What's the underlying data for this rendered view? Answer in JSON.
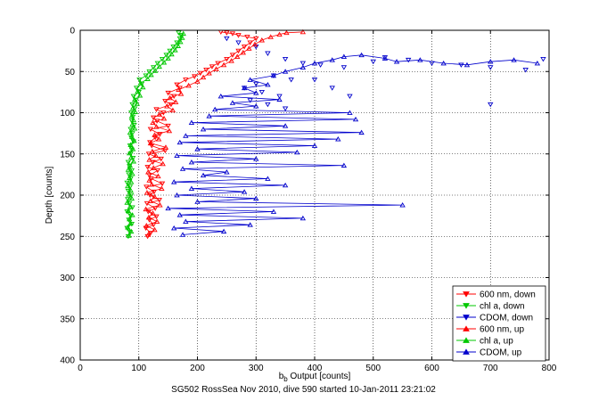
{
  "chart_data": {
    "type": "scatter",
    "xlabel_main": "b",
    "xlabel_sub": "b",
    "xlabel_rest": " Output [counts]",
    "ylabel": "Depth [counts]",
    "caption": "SG502 RossSea Nov 2010, dive 590 started 10-Jan-2011 23:21:02",
    "xlim": [
      0,
      800
    ],
    "ylim": [
      0,
      400
    ],
    "y_reversed": true,
    "grid": true,
    "legend_position": "bottom-right",
    "x_ticks": [
      0,
      100,
      200,
      300,
      400,
      500,
      600,
      700,
      800
    ],
    "y_ticks": [
      0,
      50,
      100,
      150,
      200,
      250,
      300,
      350,
      400
    ],
    "series": [
      {
        "name": "600 nm, down",
        "color": "#ff0000",
        "marker": "triangle-down",
        "line": true,
        "points": [
          [
            115,
            250
          ],
          [
            120,
            246
          ],
          [
            112,
            240
          ],
          [
            125,
            236
          ],
          [
            118,
            230
          ],
          [
            130,
            226
          ],
          [
            116,
            220
          ],
          [
            128,
            216
          ],
          [
            114,
            210
          ],
          [
            135,
            206
          ],
          [
            119,
            200
          ],
          [
            126,
            196
          ],
          [
            113,
            190
          ],
          [
            140,
            186
          ],
          [
            121,
            180
          ],
          [
            118,
            176
          ],
          [
            132,
            170
          ],
          [
            115,
            166
          ],
          [
            124,
            160
          ],
          [
            138,
            156
          ],
          [
            117,
            150
          ],
          [
            145,
            146
          ],
          [
            122,
            140
          ],
          [
            119,
            136
          ],
          [
            128,
            130
          ],
          [
            136,
            126
          ],
          [
            120,
            120
          ],
          [
            150,
            116
          ],
          [
            131,
            110
          ],
          [
            125,
            106
          ],
          [
            142,
            100
          ],
          [
            130,
            96
          ],
          [
            155,
            90
          ],
          [
            145,
            86
          ],
          [
            160,
            80
          ],
          [
            150,
            76
          ],
          [
            170,
            70
          ],
          [
            165,
            66
          ],
          [
            180,
            60
          ],
          [
            195,
            56
          ],
          [
            205,
            52
          ],
          [
            215,
            48
          ],
          [
            225,
            44
          ],
          [
            235,
            40
          ],
          [
            250,
            35
          ],
          [
            260,
            30
          ],
          [
            270,
            25
          ],
          [
            280,
            20
          ],
          [
            290,
            15
          ],
          [
            300,
            10
          ],
          [
            285,
            8
          ],
          [
            270,
            6
          ],
          [
            260,
            4
          ],
          [
            250,
            3
          ],
          [
            240,
            2
          ]
        ]
      },
      {
        "name": "chl a, down",
        "color": "#00c800",
        "marker": "triangle-down",
        "line": true,
        "points": [
          [
            82,
            250
          ],
          [
            85,
            245
          ],
          [
            80,
            240
          ],
          [
            88,
            235
          ],
          [
            83,
            230
          ],
          [
            86,
            225
          ],
          [
            80,
            220
          ],
          [
            89,
            215
          ],
          [
            84,
            210
          ],
          [
            81,
            205
          ],
          [
            87,
            200
          ],
          [
            82,
            195
          ],
          [
            85,
            190
          ],
          [
            80,
            185
          ],
          [
            86,
            180
          ],
          [
            83,
            175
          ],
          [
            88,
            170
          ],
          [
            84,
            165
          ],
          [
            82,
            160
          ],
          [
            90,
            155
          ],
          [
            86,
            150
          ],
          [
            88,
            145
          ],
          [
            85,
            140
          ],
          [
            91,
            135
          ],
          [
            87,
            130
          ],
          [
            89,
            125
          ],
          [
            86,
            120
          ],
          [
            92,
            115
          ],
          [
            88,
            110
          ],
          [
            90,
            105
          ],
          [
            87,
            100
          ],
          [
            93,
            95
          ],
          [
            89,
            90
          ],
          [
            95,
            85
          ],
          [
            91,
            80
          ],
          [
            100,
            75
          ],
          [
            96,
            70
          ],
          [
            105,
            65
          ],
          [
            101,
            60
          ],
          [
            112,
            55
          ],
          [
            118,
            50
          ],
          [
            125,
            45
          ],
          [
            132,
            40
          ],
          [
            140,
            35
          ],
          [
            147,
            30
          ],
          [
            153,
            25
          ],
          [
            159,
            20
          ],
          [
            165,
            15
          ],
          [
            170,
            10
          ],
          [
            172,
            6
          ],
          [
            168,
            3
          ]
        ]
      },
      {
        "name": "CDOM, down",
        "color": "#0000cc",
        "marker": "triangle-down",
        "line": false,
        "points": [
          [
            250,
            10
          ],
          [
            270,
            15
          ],
          [
            300,
            20
          ],
          [
            320,
            28
          ],
          [
            350,
            35
          ],
          [
            380,
            40
          ],
          [
            410,
            42
          ],
          [
            450,
            45
          ],
          [
            500,
            38
          ],
          [
            520,
            33
          ],
          [
            560,
            36
          ],
          [
            600,
            40
          ],
          [
            650,
            42
          ],
          [
            700,
            45
          ],
          [
            760,
            48
          ],
          [
            790,
            35
          ],
          [
            330,
            55
          ],
          [
            360,
            60
          ],
          [
            300,
            65
          ],
          [
            280,
            70
          ],
          [
            310,
            75
          ],
          [
            340,
            80
          ],
          [
            290,
            85
          ],
          [
            320,
            90
          ],
          [
            350,
            95
          ],
          [
            400,
            60
          ],
          [
            430,
            70
          ],
          [
            460,
            80
          ],
          [
            700,
            90
          ]
        ]
      },
      {
        "name": "600 nm, up",
        "color": "#ff0000",
        "marker": "triangle-up",
        "line": true,
        "points": [
          [
            116,
            248
          ],
          [
            127,
            242
          ],
          [
            113,
            237
          ],
          [
            131,
            232
          ],
          [
            117,
            227
          ],
          [
            124,
            222
          ],
          [
            112,
            217
          ],
          [
            136,
            212
          ],
          [
            120,
            207
          ],
          [
            127,
            202
          ],
          [
            114,
            197
          ],
          [
            139,
            192
          ],
          [
            122,
            187
          ],
          [
            118,
            182
          ],
          [
            133,
            177
          ],
          [
            116,
            172
          ],
          [
            125,
            167
          ],
          [
            141,
            162
          ],
          [
            118,
            157
          ],
          [
            129,
            152
          ],
          [
            123,
            147
          ],
          [
            146,
            142
          ],
          [
            120,
            137
          ],
          [
            134,
            132
          ],
          [
            127,
            127
          ],
          [
            152,
            122
          ],
          [
            130,
            117
          ],
          [
            124,
            112
          ],
          [
            143,
            107
          ],
          [
            135,
            102
          ],
          [
            158,
            97
          ],
          [
            148,
            92
          ],
          [
            163,
            87
          ],
          [
            153,
            82
          ],
          [
            172,
            77
          ],
          [
            168,
            72
          ],
          [
            185,
            67
          ],
          [
            200,
            62
          ],
          [
            210,
            57
          ],
          [
            220,
            52
          ],
          [
            232,
            47
          ],
          [
            245,
            42
          ],
          [
            258,
            37
          ],
          [
            268,
            32
          ],
          [
            278,
            27
          ],
          [
            288,
            22
          ],
          [
            298,
            17
          ],
          [
            310,
            12
          ],
          [
            325,
            8
          ],
          [
            340,
            5
          ],
          [
            352,
            3
          ],
          [
            380,
            2
          ]
        ]
      },
      {
        "name": "chl a, up",
        "color": "#00c800",
        "marker": "triangle-up",
        "line": true,
        "points": [
          [
            83,
            249
          ],
          [
            87,
            244
          ],
          [
            81,
            239
          ],
          [
            86,
            234
          ],
          [
            84,
            229
          ],
          [
            89,
            224
          ],
          [
            82,
            219
          ],
          [
            85,
            214
          ],
          [
            80,
            209
          ],
          [
            88,
            204
          ],
          [
            83,
            199
          ],
          [
            86,
            194
          ],
          [
            81,
            189
          ],
          [
            87,
            184
          ],
          [
            84,
            179
          ],
          [
            89,
            174
          ],
          [
            82,
            169
          ],
          [
            85,
            164
          ],
          [
            91,
            159
          ],
          [
            87,
            154
          ],
          [
            84,
            149
          ],
          [
            90,
            144
          ],
          [
            86,
            139
          ],
          [
            92,
            134
          ],
          [
            88,
            129
          ],
          [
            85,
            124
          ],
          [
            93,
            119
          ],
          [
            89,
            114
          ],
          [
            91,
            109
          ],
          [
            88,
            104
          ],
          [
            94,
            99
          ],
          [
            90,
            94
          ],
          [
            97,
            89
          ],
          [
            93,
            84
          ],
          [
            102,
            79
          ],
          [
            98,
            74
          ],
          [
            107,
            69
          ],
          [
            103,
            64
          ],
          [
            115,
            59
          ],
          [
            121,
            54
          ],
          [
            128,
            49
          ],
          [
            135,
            44
          ],
          [
            143,
            39
          ],
          [
            150,
            34
          ],
          [
            156,
            29
          ],
          [
            162,
            24
          ],
          [
            167,
            19
          ],
          [
            171,
            14
          ],
          [
            174,
            9
          ],
          [
            176,
            4
          ]
        ]
      },
      {
        "name": "CDOM, up",
        "color": "#0000cc",
        "marker": "triangle-up",
        "line": true,
        "points": [
          [
            175,
            248
          ],
          [
            245,
            244
          ],
          [
            160,
            240
          ],
          [
            290,
            236
          ],
          [
            180,
            232
          ],
          [
            380,
            228
          ],
          [
            170,
            224
          ],
          [
            330,
            220
          ],
          [
            150,
            216
          ],
          [
            550,
            212
          ],
          [
            200,
            208
          ],
          [
            300,
            204
          ],
          [
            165,
            200
          ],
          [
            280,
            196
          ],
          [
            190,
            192
          ],
          [
            350,
            188
          ],
          [
            160,
            184
          ],
          [
            320,
            180
          ],
          [
            210,
            176
          ],
          [
            250,
            172
          ],
          [
            175,
            168
          ],
          [
            450,
            164
          ],
          [
            190,
            160
          ],
          [
            300,
            156
          ],
          [
            165,
            152
          ],
          [
            370,
            148
          ],
          [
            200,
            144
          ],
          [
            400,
            140
          ],
          [
            170,
            136
          ],
          [
            440,
            132
          ],
          [
            180,
            128
          ],
          [
            480,
            124
          ],
          [
            210,
            120
          ],
          [
            350,
            116
          ],
          [
            190,
            112
          ],
          [
            470,
            108
          ],
          [
            220,
            104
          ],
          [
            460,
            100
          ],
          [
            230,
            96
          ],
          [
            300,
            92
          ],
          [
            260,
            88
          ],
          [
            340,
            84
          ],
          [
            240,
            80
          ],
          [
            300,
            76
          ],
          [
            280,
            70
          ],
          [
            320,
            66
          ],
          [
            290,
            60
          ],
          [
            330,
            55
          ],
          [
            350,
            50
          ],
          [
            380,
            45
          ],
          [
            400,
            40
          ],
          [
            430,
            36
          ],
          [
            450,
            32
          ],
          [
            480,
            30
          ],
          [
            520,
            34
          ],
          [
            540,
            38
          ],
          [
            580,
            36
          ],
          [
            620,
            40
          ],
          [
            660,
            42
          ],
          [
            700,
            38
          ],
          [
            740,
            36
          ],
          [
            780,
            40
          ]
        ]
      }
    ]
  }
}
